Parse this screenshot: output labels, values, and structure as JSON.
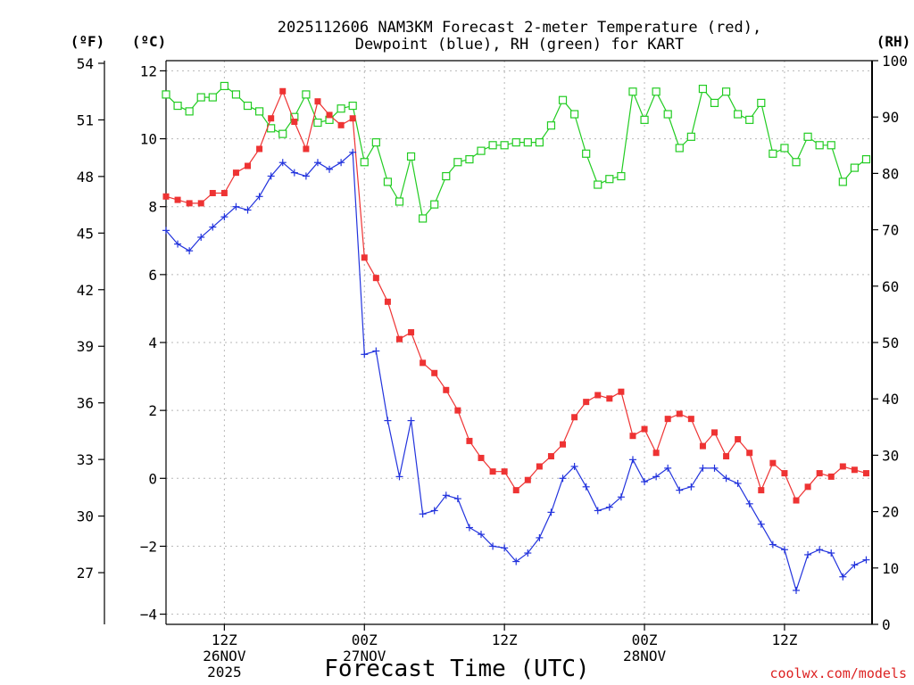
{
  "chart_data": {
    "type": "line",
    "title_line1": "2025112606 NAM3KM Forecast 2-meter Temperature (red),",
    "title_line2": "Dewpoint (blue), RH (green) for KART",
    "xlabel": "Forecast Time (UTC)",
    "credit": "coolwx.com/models",
    "units": {
      "f": "(ºF)",
      "c": "(ºC)",
      "rh": "(RH)"
    },
    "x_range_hours": [
      7,
      67.5
    ],
    "xticks": [
      {
        "hour": 12,
        "l1": "12Z",
        "l2": "26NOV",
        "l3": "2025"
      },
      {
        "hour": 24,
        "l1": "00Z",
        "l2": "27NOV",
        "l3": ""
      },
      {
        "hour": 36,
        "l1": "12Z",
        "l2": "",
        "l3": ""
      },
      {
        "hour": 48,
        "l1": "00Z",
        "l2": "28NOV",
        "l3": ""
      },
      {
        "hour": 60,
        "l1": "12Z",
        "l2": "",
        "l3": ""
      }
    ],
    "yleft_c": {
      "range": [
        -4.3,
        12.3
      ],
      "ticks": [
        12,
        10,
        8,
        6,
        4,
        2,
        0,
        -2,
        -4
      ],
      "labels": [
        "12",
        "10",
        "8",
        "6",
        "4",
        "2",
        "0",
        "−2",
        "−4"
      ]
    },
    "yleft_f": {
      "ticks": [
        54,
        51,
        48,
        45,
        42,
        39,
        36,
        33,
        30,
        27
      ],
      "labels": [
        "54",
        "51",
        "48",
        "45",
        "42",
        "39",
        "36",
        "33",
        "30",
        "27"
      ]
    },
    "yright_rh": {
      "range": [
        0,
        100
      ],
      "ticks": [
        100,
        90,
        80,
        70,
        60,
        50,
        40,
        30,
        20,
        10,
        0
      ],
      "labels": [
        "100",
        "90",
        "80",
        "70",
        "60",
        "50",
        "40",
        "30",
        "20",
        "10",
        "0"
      ]
    },
    "hours": [
      7,
      8,
      9,
      10,
      11,
      12,
      13,
      14,
      15,
      16,
      17,
      18,
      19,
      20,
      21,
      22,
      23,
      24,
      25,
      26,
      27,
      28,
      29,
      30,
      31,
      32,
      33,
      34,
      35,
      36,
      37,
      38,
      39,
      40,
      41,
      42,
      43,
      44,
      45,
      46,
      47,
      48,
      49,
      50,
      51,
      52,
      53,
      54,
      55,
      56,
      57,
      58,
      59,
      60,
      61,
      62,
      63,
      64,
      65,
      66,
      67
    ],
    "series": [
      {
        "name": "2-meter Temperature",
        "unit": "C",
        "color": "#ee3333",
        "marker": "filled-square",
        "values": [
          8.3,
          8.2,
          8.1,
          8.1,
          8.4,
          8.4,
          9.0,
          9.2,
          9.7,
          10.6,
          11.4,
          10.5,
          9.7,
          11.1,
          10.7,
          10.4,
          10.6,
          6.5,
          5.9,
          5.2,
          4.1,
          4.3,
          3.4,
          3.1,
          2.6,
          2.0,
          1.1,
          0.6,
          0.2,
          0.2,
          -0.35,
          -0.05,
          0.35,
          0.65,
          1.0,
          1.8,
          2.25,
          2.45,
          2.35,
          2.55,
          1.25,
          1.45,
          0.75,
          1.75,
          1.9,
          1.75,
          0.95,
          1.35,
          0.65,
          1.15,
          0.75,
          -0.35,
          0.45,
          0.15,
          -0.65,
          -0.25,
          0.15,
          0.05,
          0.35,
          0.25,
          0.15
        ]
      },
      {
        "name": "Dewpoint",
        "unit": "C",
        "color": "#2233dd",
        "marker": "plus",
        "values": [
          7.3,
          6.9,
          6.7,
          7.1,
          7.4,
          7.7,
          8.0,
          7.9,
          8.3,
          8.9,
          9.3,
          9.0,
          8.9,
          9.3,
          9.1,
          9.3,
          9.6,
          3.65,
          3.75,
          1.7,
          0.05,
          1.7,
          -1.05,
          -0.95,
          -0.5,
          -0.6,
          -1.45,
          -1.65,
          -2.0,
          -2.05,
          -2.45,
          -2.2,
          -1.75,
          -1.0,
          0.0,
          0.35,
          -0.25,
          -0.95,
          -0.85,
          -0.55,
          0.55,
          -0.1,
          0.05,
          0.3,
          -0.35,
          -0.25,
          0.3,
          0.3,
          0.0,
          -0.15,
          -0.75,
          -1.35,
          -1.95,
          -2.1,
          -3.3,
          -2.25,
          -2.1,
          -2.2,
          -2.9,
          -2.55,
          -2.4
        ]
      },
      {
        "name": "RH",
        "unit": "%",
        "color": "#22cc22",
        "marker": "open-square",
        "values": [
          94,
          92,
          91,
          93.5,
          93.5,
          95.5,
          94,
          92,
          91,
          88,
          87,
          90,
          94,
          89,
          89.5,
          91.5,
          92,
          82,
          85.5,
          78.5,
          75,
          83,
          72,
          74.5,
          79.5,
          82,
          82.5,
          84,
          85,
          85,
          85.5,
          85.5,
          85.5,
          88.5,
          93,
          90.5,
          83.5,
          78,
          79,
          79.5,
          94.5,
          89.5,
          94.5,
          90.5,
          84.5,
          86.5,
          95,
          92.5,
          94.5,
          90.5,
          89.5,
          92.5,
          83.5,
          84.5,
          82,
          86.5,
          85,
          85,
          78.5,
          81,
          82.5
        ]
      }
    ]
  }
}
